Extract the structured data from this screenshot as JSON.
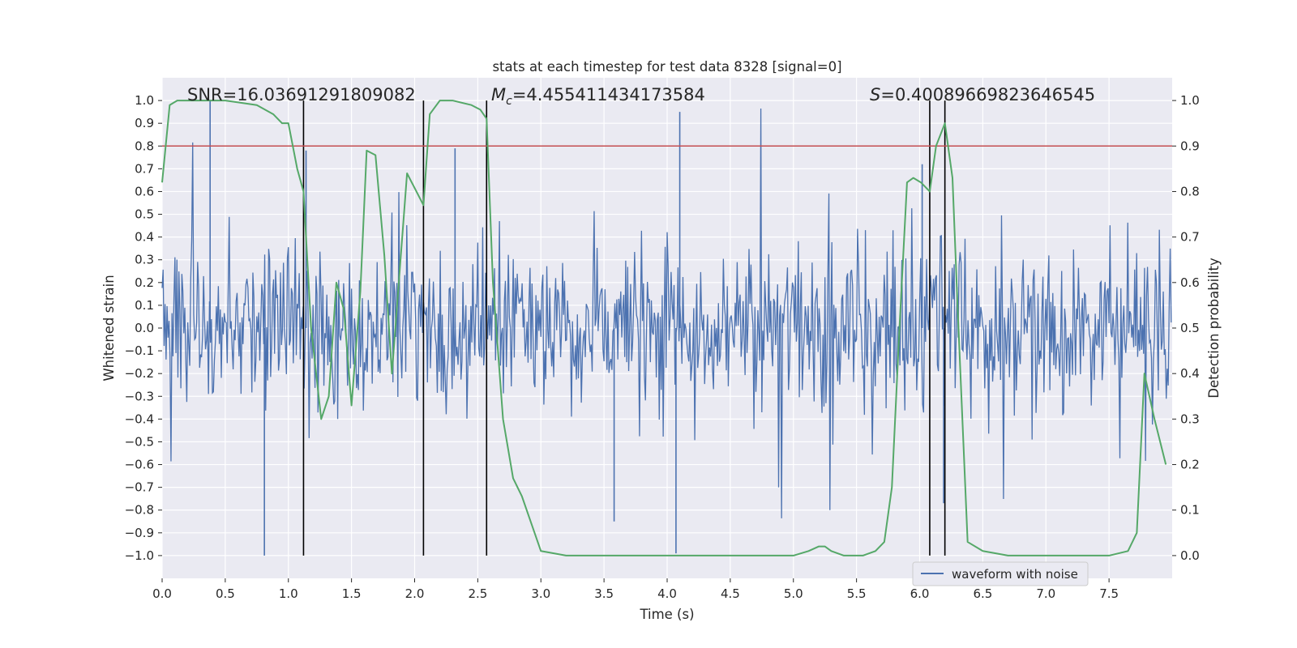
{
  "chart_data": {
    "type": "line",
    "title": "stats at each timestep for test data 8328 [signal=0]",
    "xlabel": "Time (s)",
    "ylabel_left": "Whitened strain",
    "ylabel_right": "Detection probability",
    "xlim": [
      0.0,
      8.0
    ],
    "ylim_left": [
      -1.1,
      1.1
    ],
    "ylim_right": [
      -0.05,
      1.05
    ],
    "x_ticks": [
      0.0,
      0.5,
      1.0,
      1.5,
      2.0,
      2.5,
      3.0,
      3.5,
      4.0,
      4.5,
      5.0,
      5.5,
      6.0,
      6.5,
      7.0,
      7.5
    ],
    "x_tick_labels": [
      "0.0",
      "0.5",
      "1.0",
      "1.5",
      "2.0",
      "2.5",
      "3.0",
      "3.5",
      "4.0",
      "4.5",
      "5.0",
      "5.5",
      "6.0",
      "6.5",
      "7.0",
      "7.5"
    ],
    "y_left_ticks": [
      -1.0,
      -0.9,
      -0.8,
      -0.7,
      -0.6,
      -0.5,
      -0.4,
      -0.3,
      -0.2,
      -0.1,
      0.0,
      0.1,
      0.2,
      0.3,
      0.4,
      0.5,
      0.6,
      0.7,
      0.8,
      0.9,
      1.0
    ],
    "y_left_tick_labels": [
      "−1.0",
      "−0.9",
      "−0.8",
      "−0.7",
      "−0.6",
      "−0.5",
      "−0.4",
      "−0.3",
      "−0.2",
      "−0.1",
      "0.0",
      "0.1",
      "0.2",
      "0.3",
      "0.4",
      "0.5",
      "0.6",
      "0.7",
      "0.8",
      "0.9",
      "1.0"
    ],
    "y_right_ticks": [
      0.0,
      0.1,
      0.2,
      0.3,
      0.4,
      0.5,
      0.6,
      0.7,
      0.8,
      0.9,
      1.0
    ],
    "y_right_tick_labels": [
      "0.0",
      "0.1",
      "0.2",
      "0.3",
      "0.4",
      "0.5",
      "0.6",
      "0.7",
      "0.8",
      "0.9",
      "1.0"
    ],
    "grid": true,
    "legend": {
      "placement": "lower center-right",
      "entries": [
        {
          "label": "waveform with noise",
          "color": "#4c72b0"
        }
      ]
    },
    "annotations": {
      "snr": "SNR=16.03691291809082",
      "mc_symbol": "M",
      "mc_sub": "c",
      "mc_value": "=4.455411434173584",
      "s_symbol": "S",
      "s_value": "=0.40089669823646545"
    },
    "threshold": {
      "axis": "right",
      "value": 0.9,
      "color": "#c44e52"
    },
    "vertical_markers": [
      1.12,
      2.07,
      2.57,
      6.08,
      6.2
    ],
    "waveform": {
      "name": "waveform with noise",
      "color": "#4c72b0",
      "samples": 1024,
      "noise_sigma": 0.18,
      "spikes": [
        {
          "t": 0.38,
          "value": 1.0
        },
        {
          "t": 0.81,
          "value": -1.0
        },
        {
          "t": 4.07,
          "value": -0.99
        },
        {
          "t": 4.1,
          "value": 0.95
        },
        {
          "t": 3.58,
          "value": -0.85
        },
        {
          "t": 2.32,
          "value": 0.79
        },
        {
          "t": 1.14,
          "value": 0.78
        },
        {
          "t": 6.19,
          "value": -0.77
        },
        {
          "t": 6.02,
          "value": 0.72
        }
      ]
    },
    "series": [
      {
        "name": "detection probability",
        "axis": "right",
        "color": "#55a868",
        "x": [
          0.0,
          0.06,
          0.12,
          0.2,
          0.5,
          0.75,
          0.88,
          0.95,
          1.0,
          1.07,
          1.12,
          1.18,
          1.26,
          1.32,
          1.38,
          1.44,
          1.5,
          1.57,
          1.62,
          1.69,
          1.76,
          1.82,
          1.94,
          2.07,
          2.12,
          2.2,
          2.3,
          2.45,
          2.52,
          2.57,
          2.62,
          2.7,
          2.78,
          2.85,
          3.0,
          3.2,
          3.6,
          4.0,
          4.5,
          5.0,
          5.12,
          5.2,
          5.25,
          5.3,
          5.4,
          5.55,
          5.65,
          5.72,
          5.78,
          5.84,
          5.9,
          5.95,
          6.01,
          6.08,
          6.13,
          6.2,
          6.26,
          6.3,
          6.38,
          6.5,
          6.7,
          7.0,
          7.5,
          7.65,
          7.72,
          7.78,
          7.86,
          7.95
        ],
        "values": [
          0.82,
          0.99,
          1.0,
          1.0,
          1.0,
          0.99,
          0.97,
          0.95,
          0.95,
          0.85,
          0.8,
          0.5,
          0.3,
          0.35,
          0.6,
          0.54,
          0.33,
          0.58,
          0.89,
          0.88,
          0.66,
          0.4,
          0.84,
          0.77,
          0.97,
          1.0,
          1.0,
          0.99,
          0.98,
          0.96,
          0.6,
          0.3,
          0.17,
          0.13,
          0.01,
          0.0,
          0.0,
          0.0,
          0.0,
          0.0,
          0.01,
          0.02,
          0.02,
          0.01,
          0.0,
          0.0,
          0.01,
          0.03,
          0.15,
          0.5,
          0.82,
          0.83,
          0.82,
          0.8,
          0.9,
          0.95,
          0.83,
          0.55,
          0.03,
          0.01,
          0.0,
          0.0,
          0.0,
          0.01,
          0.05,
          0.4,
          0.3,
          0.2
        ]
      }
    ]
  }
}
